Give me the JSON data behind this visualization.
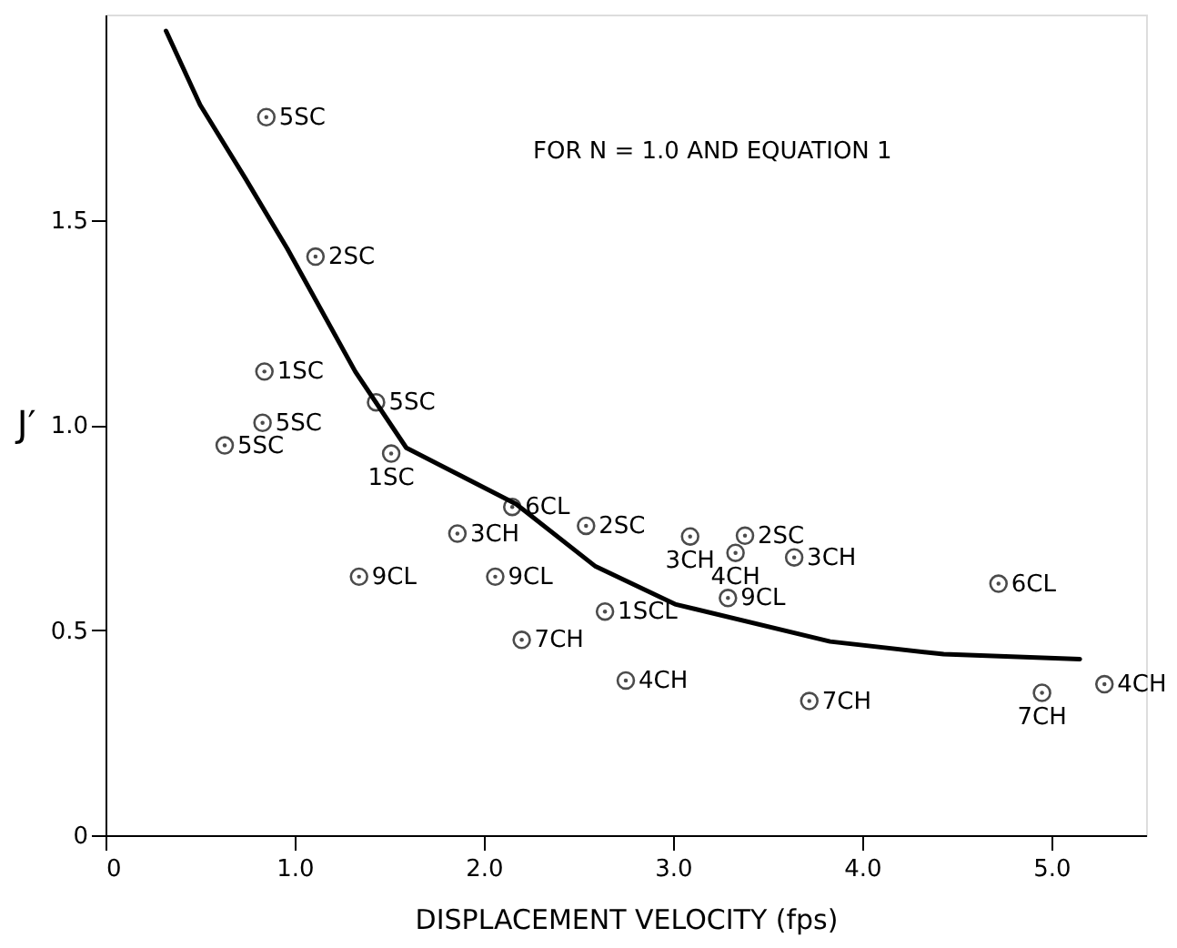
{
  "chart_data": {
    "type": "scatter",
    "xlabel": "DISPLACEMENT    VELOCITY    (fps)",
    "ylabel": "J′",
    "xlim": [
      0,
      5.5
    ],
    "ylim": [
      0,
      2.0
    ],
    "xticks": [
      0,
      {
        "value": 1,
        "label": "1.0"
      },
      {
        "value": 2,
        "label": "2.0"
      },
      {
        "value": 3,
        "label": "3.0"
      },
      {
        "value": 4,
        "label": "4.0"
      },
      {
        "value": 5,
        "label": "5.0"
      }
    ],
    "yticks": [
      0,
      0.5,
      {
        "value": 1,
        "label": "1.0"
      },
      1.5
    ],
    "grid": false,
    "series": [
      {
        "color": "#000000",
        "marker": "circle",
        "x": [
          0.85,
          1.11,
          0.84,
          1.43,
          0.83,
          0.63,
          1.51,
          2.15,
          1.86,
          1.34,
          2.06,
          2.2,
          2.54,
          3.09,
          3.38,
          3.33,
          3.64,
          3.29,
          4.72,
          2.64,
          2.75,
          3.72,
          4.95,
          5.28
        ],
        "values": [
          1.75,
          1.41,
          1.13,
          1.055,
          1.005,
          0.95,
          0.93,
          0.8,
          0.735,
          0.63,
          0.63,
          0.476,
          0.754,
          0.728,
          0.73,
          0.688,
          0.677,
          0.578,
          0.613,
          0.545,
          0.377,
          0.327,
          0.347,
          0.368
        ]
      },
      {
        "type": "line",
        "color": "#000000",
        "line_style": "solid",
        "x": [
          0.32,
          0.5,
          0.74,
          0.96,
          1.32,
          1.59,
          2.17,
          2.59,
          3.01,
          3.83,
          4.43,
          5.15
        ],
        "values": [
          1.96,
          1.78,
          1.6,
          1.43,
          1.13,
          0.944,
          0.807,
          0.655,
          0.563,
          0.472,
          0.441,
          0.429
        ]
      }
    ],
    "annotations": [
      "FOR   N = 1.0  AND  EQUATION   1",
      {
        "text": "5SC",
        "x": 0.85,
        "y": 1.75
      },
      {
        "text": "2SC",
        "x": 1.11,
        "y": 1.41
      },
      {
        "text": "1SC",
        "x": 0.84,
        "y": 1.13
      },
      {
        "text": "5SC",
        "x": 1.43,
        "y": 1.055
      },
      {
        "text": "5SC",
        "x": 0.83,
        "y": 1.005
      },
      {
        "text": "5SC",
        "x": 0.63,
        "y": 0.95
      },
      {
        "text": "1SC",
        "x": 1.51,
        "y": 0.93
      },
      {
        "text": "6CL",
        "x": 2.15,
        "y": 0.8
      },
      {
        "text": "3CH",
        "x": 1.86,
        "y": 0.735
      },
      {
        "text": "9CL",
        "x": 1.34,
        "y": 0.63
      },
      {
        "text": "9CL",
        "x": 2.06,
        "y": 0.63
      },
      {
        "text": "7CH",
        "x": 2.2,
        "y": 0.476
      },
      {
        "text": "2SC",
        "x": 2.54,
        "y": 0.754
      },
      {
        "text": "3CH",
        "x": 3.09,
        "y": 0.728
      },
      {
        "text": "2SC",
        "x": 3.38,
        "y": 0.73
      },
      {
        "text": "4CH",
        "x": 3.33,
        "y": 0.688
      },
      {
        "text": "3CH",
        "x": 3.64,
        "y": 0.677
      },
      {
        "text": "9CL",
        "x": 3.29,
        "y": 0.578
      },
      {
        "text": "6CL",
        "x": 4.72,
        "y": 0.613
      },
      {
        "text": "1SCL",
        "x": 2.64,
        "y": 0.545
      },
      {
        "text": "4CH",
        "x": 2.75,
        "y": 0.377
      },
      {
        "text": "7CH",
        "x": 3.72,
        "y": 0.327
      },
      {
        "text": "7CH",
        "x": 4.95,
        "y": 0.347
      },
      {
        "text": "4CH",
        "x": 5.28,
        "y": 0.368
      }
    ]
  }
}
